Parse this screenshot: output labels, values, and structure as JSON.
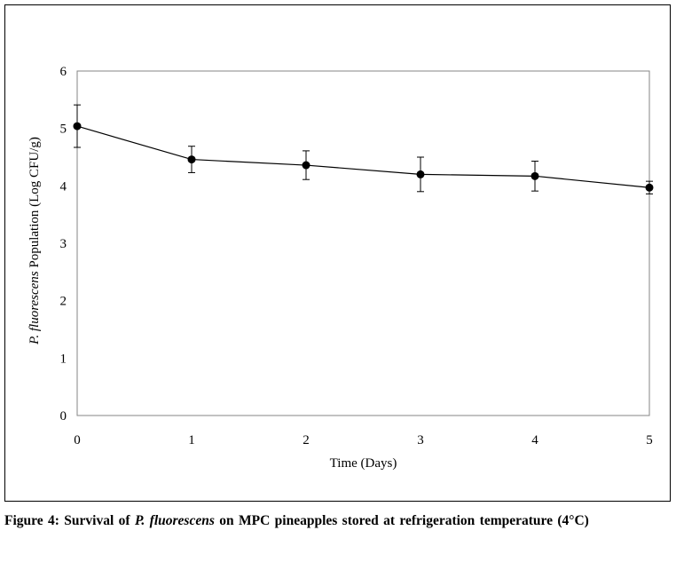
{
  "chart_data": {
    "type": "line",
    "xlabel": "Time (Days)",
    "ylabel_italic": "P. fluorescens",
    "ylabel_rest": " Population (Log CFU/g)",
    "xlim": [
      0,
      5
    ],
    "ylim": [
      0,
      6
    ],
    "x_ticks": [
      "0",
      "1",
      "2",
      "3",
      "4",
      "5"
    ],
    "y_ticks": [
      "0",
      "1",
      "2",
      "3",
      "4",
      "5",
      "6"
    ],
    "grid": false,
    "series": [
      {
        "x": [
          0,
          1,
          2,
          3,
          4,
          5
        ],
        "values": [
          5.04,
          4.46,
          4.36,
          4.2,
          4.17,
          3.97
        ],
        "error": [
          0.37,
          0.23,
          0.25,
          0.3,
          0.26,
          0.11
        ],
        "color": "#000000"
      }
    ]
  },
  "caption": {
    "prefix": "Figure 4: Survival of ",
    "italic": "P. fluorescens",
    "suffix": " on MPC pineapples stored at refrigeration temperature (4°C)"
  }
}
